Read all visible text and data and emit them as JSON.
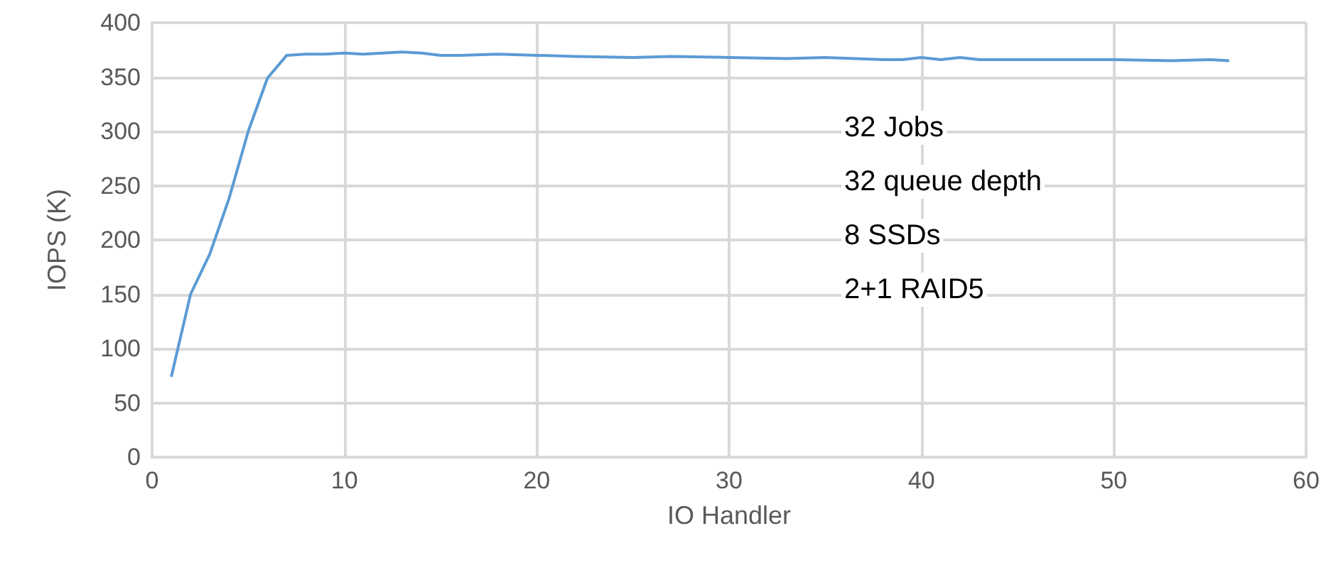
{
  "chart_data": {
    "type": "line",
    "xlabel": "IO Handler",
    "ylabel": "IOPS (K)",
    "x": [
      1,
      2,
      3,
      4,
      5,
      6,
      7,
      8,
      9,
      10,
      11,
      12,
      13,
      14,
      15,
      16,
      18,
      20,
      22,
      25,
      27,
      30,
      33,
      35,
      38,
      39,
      40,
      41,
      42,
      43,
      45,
      48,
      50,
      53,
      55,
      56
    ],
    "series": [
      {
        "color": "#5b9bd5",
        "values": [
          74,
          150,
          187,
          238,
          300,
          349,
          370,
          371,
          371,
          372,
          371,
          372,
          373,
          372,
          370,
          370,
          371,
          370,
          369,
          368,
          369,
          368,
          367,
          368,
          366,
          366,
          368,
          366,
          368,
          366,
          366,
          366,
          366,
          365,
          366,
          365
        ]
      }
    ],
    "xlim": [
      0,
      60
    ],
    "xticks": [
      0,
      10,
      20,
      30,
      40,
      50,
      60
    ],
    "ylim": [
      0,
      400
    ],
    "yticks": [
      0,
      50,
      100,
      150,
      200,
      250,
      300,
      350,
      400
    ],
    "grid": true,
    "marker": "none",
    "line_style": "solid",
    "annotations": [
      "32 Jobs",
      "32 queue depth",
      "8 SSDs",
      "2+1 RAID5"
    ]
  }
}
